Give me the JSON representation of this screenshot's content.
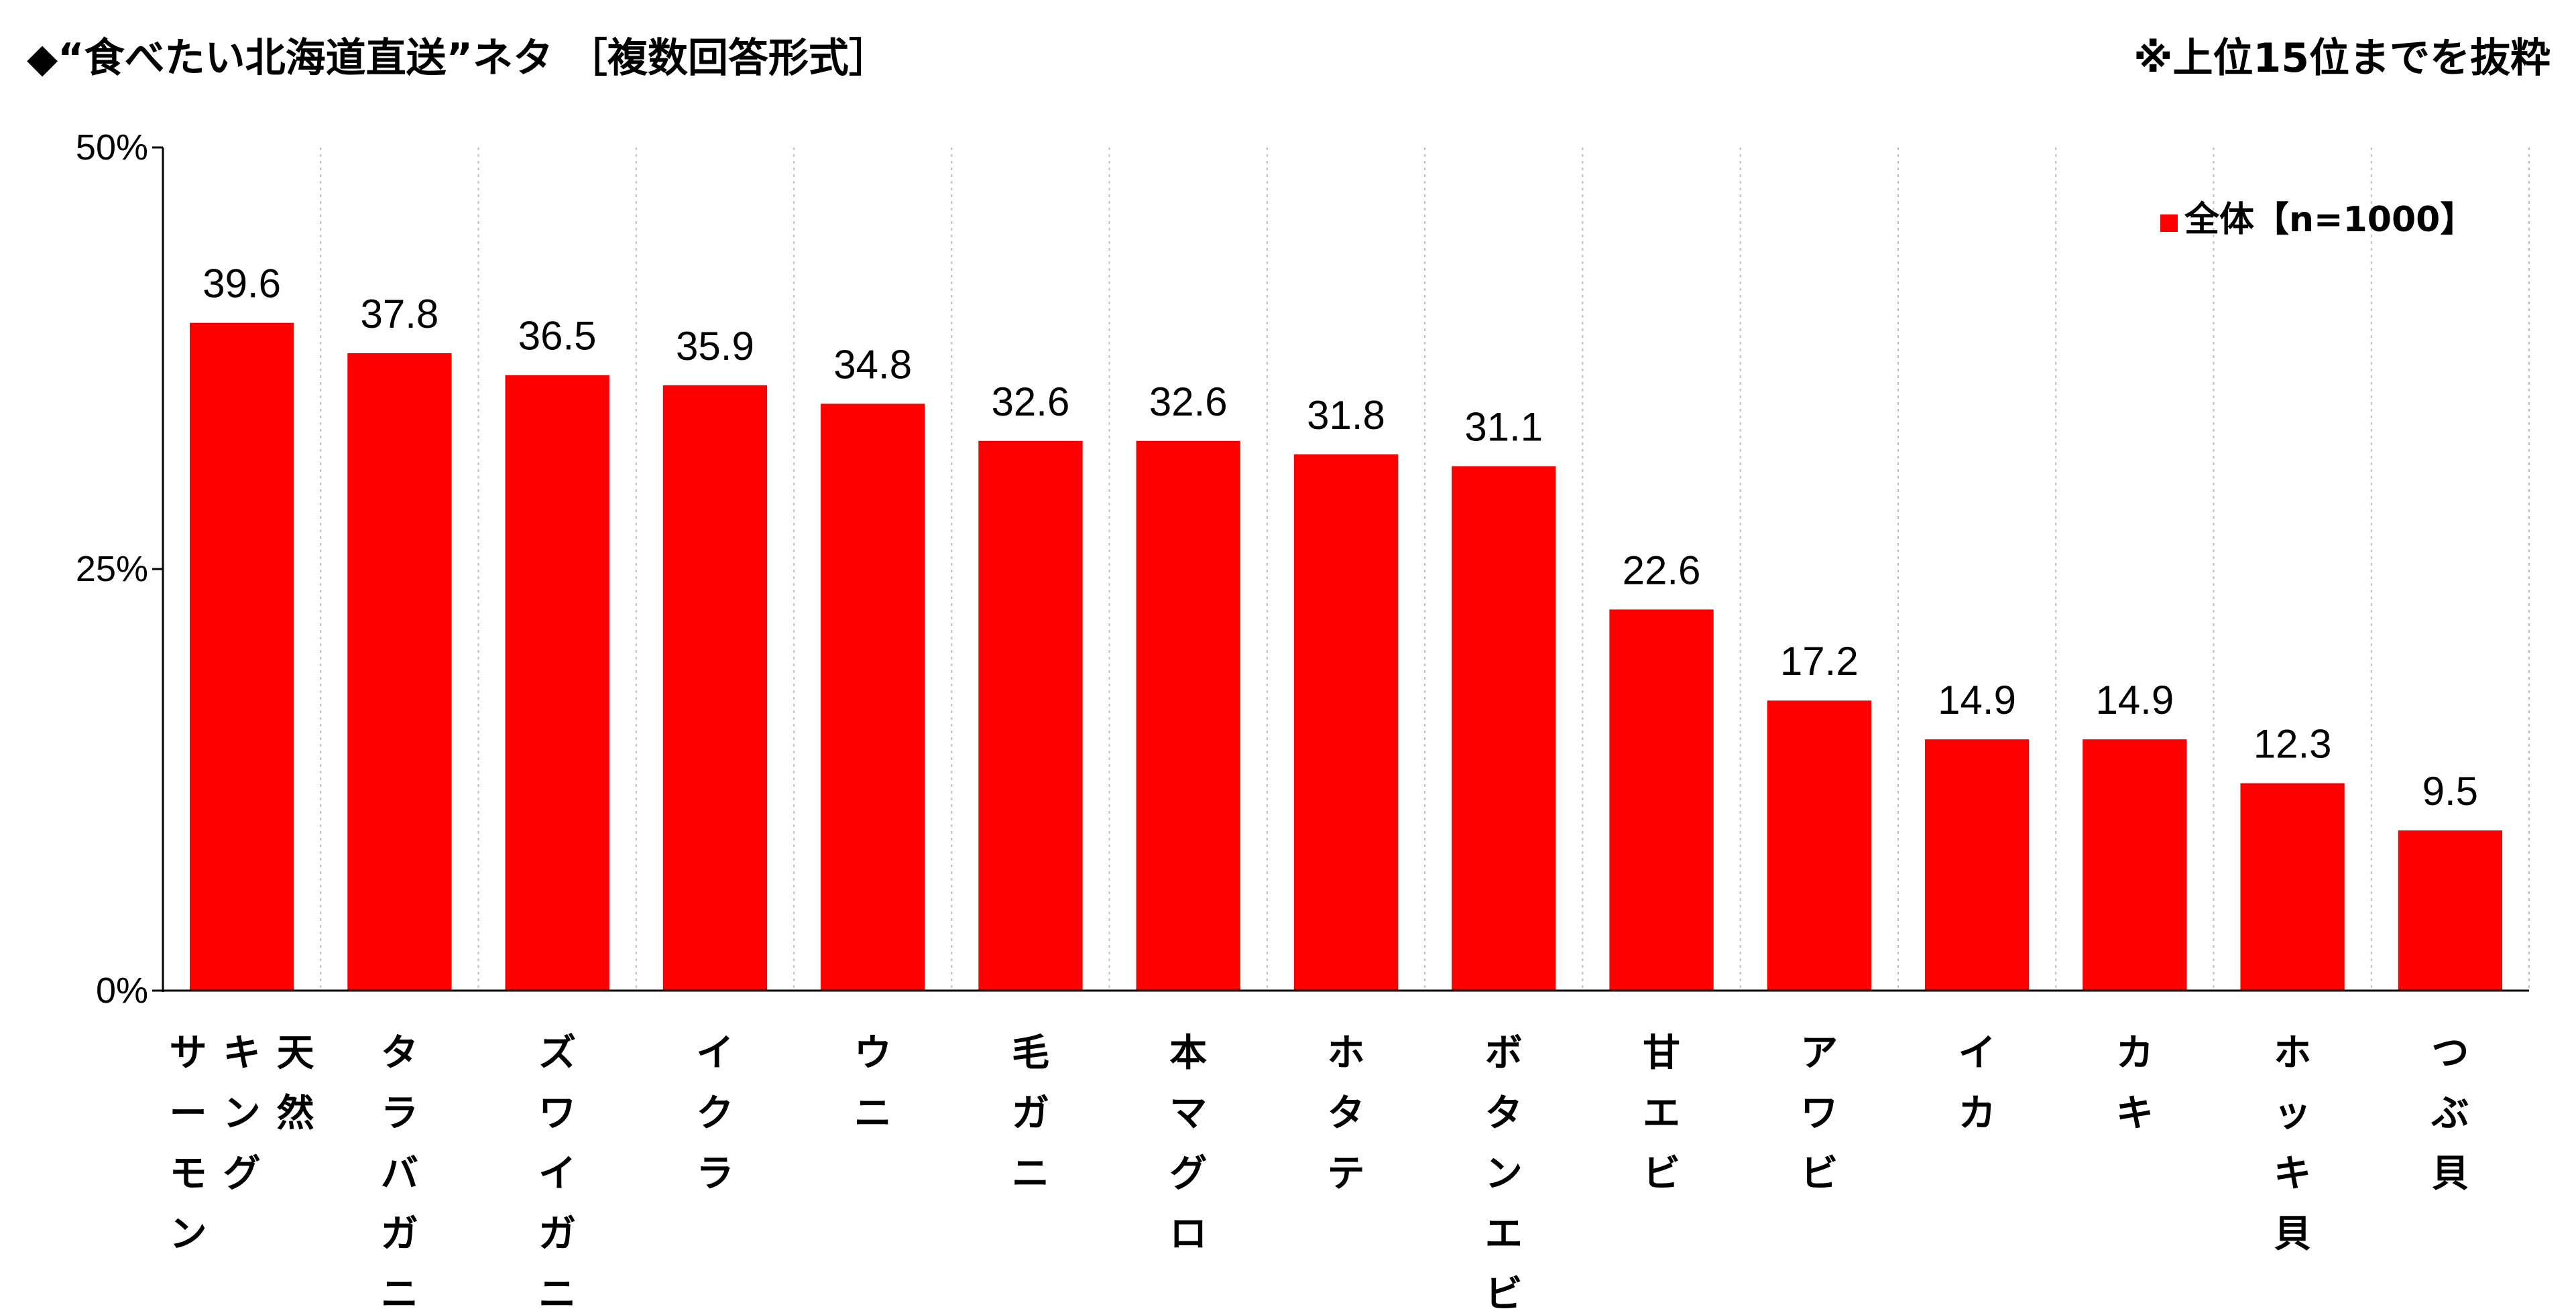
{
  "title": "◆“食べたい北海道直送”ネタ ［複数回答形式］",
  "note": "※上位15位までを抜粋",
  "colors": {
    "bar": "#FF0000",
    "grid": "#BFBFBF",
    "axis": "#000000"
  },
  "chart_data": {
    "type": "bar",
    "title": "◆“食べたい北海道直送”ネタ ［複数回答形式］",
    "ylim": [
      0,
      50
    ],
    "yticks": [
      "0%",
      "25%",
      "50%"
    ],
    "ytick_values": [
      0,
      25,
      50
    ],
    "grid": "vertical dotted separators",
    "legend_position": "top-right",
    "categories": [
      [
        "天然",
        "キング",
        "サーモン"
      ],
      [
        "タラバガニ"
      ],
      [
        "ズワイガニ"
      ],
      [
        "イクラ"
      ],
      [
        "ウニ"
      ],
      [
        "毛ガニ"
      ],
      [
        "本マグロ"
      ],
      [
        "ホタテ"
      ],
      [
        "ボタンエビ"
      ],
      [
        "甘エビ"
      ],
      [
        "アワビ"
      ],
      [
        "イカ"
      ],
      [
        "カキ"
      ],
      [
        "ホッキ貝"
      ],
      [
        "つぶ貝"
      ]
    ],
    "series": [
      {
        "name": "全体【n=1000】",
        "values": [
          39.6,
          37.8,
          36.5,
          35.9,
          34.8,
          32.6,
          32.6,
          31.8,
          31.1,
          22.6,
          17.2,
          14.9,
          14.9,
          12.3,
          9.5
        ],
        "labels": [
          "39.6",
          "37.8",
          "36.5",
          "35.9",
          "34.8",
          "32.6",
          "32.6",
          "31.8",
          "31.1",
          "22.6",
          "17.2",
          "14.9",
          "14.9",
          "12.3",
          "9.5"
        ]
      }
    ]
  }
}
